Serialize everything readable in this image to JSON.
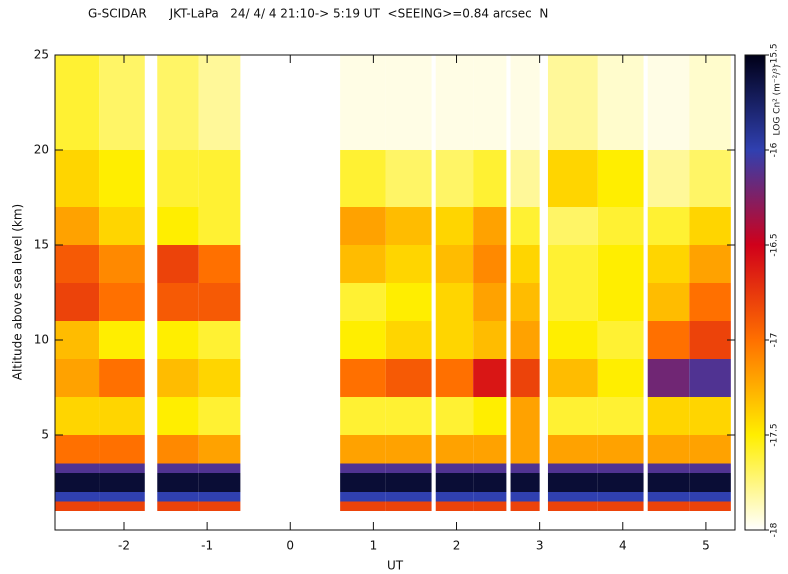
{
  "chart_data": {
    "type": "heatmap",
    "title": "G-SCIDAR      JKT-LaPa   24/ 4/ 4 21:10-> 5:19 UT  <SEEING>=0.84 arcsec  N",
    "x_label": "UT",
    "y_label": "Altitude above sea level (km)",
    "colorbar_label": "LOG Cn² (m⁻²/³)",
    "xlim": [
      -2.83,
      5.35
    ],
    "xticks": [
      -2,
      -1,
      0,
      1,
      2,
      3,
      4,
      5
    ],
    "ylim": [
      0,
      25
    ],
    "yticks": [
      5,
      10,
      15,
      20,
      25
    ],
    "zlim": [
      -18,
      -15.5
    ],
    "zticks": [
      -18,
      -17.5,
      -17,
      -16.5,
      -16,
      -15.5
    ],
    "colors": [
      "#ffffff",
      "#ffee00",
      "#ff7000",
      "#d0001a",
      "#3040b0",
      "#000018"
    ],
    "x_edges": [
      -2.83,
      -2.3,
      -1.75,
      -1.6,
      -1.1,
      -0.6,
      0.6,
      1.15,
      1.7,
      1.75,
      2.2,
      2.6,
      2.65,
      3.0,
      3.1,
      3.7,
      4.25,
      4.3,
      4.8,
      5.3
    ],
    "y_edges": [
      1,
      1.5,
      2,
      3,
      3.5,
      5,
      7,
      9,
      11,
      13,
      15,
      17,
      20,
      25
    ],
    "values": [
      [
        -16.8,
        -16.8,
        null,
        -16.8,
        -16.8,
        null,
        -16.8,
        -16.8,
        null,
        -16.8,
        -16.8,
        null,
        -16.8,
        null,
        -16.8,
        -16.8,
        null,
        -16.8,
        -16.8
      ],
      [
        -16.0,
        -16.0,
        null,
        -16.0,
        -16.0,
        null,
        -16.0,
        -16.0,
        null,
        -16.0,
        -16.0,
        null,
        -16.0,
        null,
        -16.0,
        -16.0,
        null,
        -16.0,
        -16.0
      ],
      [
        -15.6,
        -15.6,
        null,
        -15.6,
        -15.6,
        null,
        -15.6,
        -15.6,
        null,
        -15.6,
        -15.6,
        null,
        -15.6,
        null,
        -15.6,
        -15.6,
        null,
        -15.6,
        -15.6
      ],
      [
        -16.1,
        -16.1,
        null,
        -16.1,
        -16.1,
        null,
        -16.1,
        -16.1,
        null,
        -16.1,
        -16.1,
        null,
        -16.1,
        null,
        -16.1,
        -16.1,
        null,
        -16.1,
        -16.1
      ],
      [
        -17.0,
        -17.0,
        null,
        -17.1,
        -17.2,
        null,
        -17.2,
        -17.2,
        null,
        -17.2,
        -17.2,
        null,
        -17.2,
        null,
        -17.2,
        -17.2,
        null,
        -17.2,
        -17.2
      ],
      [
        -17.4,
        -17.4,
        null,
        -17.5,
        -17.6,
        null,
        -17.6,
        -17.6,
        null,
        -17.6,
        -17.5,
        null,
        -17.2,
        null,
        -17.6,
        -17.6,
        null,
        -17.4,
        -17.4
      ],
      [
        -17.2,
        -17.0,
        null,
        -17.3,
        -17.4,
        null,
        -17.0,
        -16.9,
        null,
        -17.0,
        -16.6,
        null,
        -16.8,
        null,
        -17.3,
        -17.5,
        null,
        -16.2,
        -16.1
      ],
      [
        -17.3,
        -17.5,
        null,
        -17.5,
        -17.6,
        null,
        -17.5,
        -17.4,
        null,
        -17.4,
        -17.3,
        null,
        -17.2,
        null,
        -17.5,
        -17.6,
        null,
        -17.0,
        -16.8
      ],
      [
        -16.8,
        -17.0,
        null,
        -16.9,
        -16.9,
        null,
        -17.6,
        -17.5,
        null,
        -17.4,
        -17.2,
        null,
        -17.3,
        null,
        -17.6,
        -17.5,
        null,
        -17.3,
        -17.0
      ],
      [
        -16.9,
        -17.1,
        null,
        -16.8,
        -17.0,
        null,
        -17.3,
        -17.4,
        null,
        -17.3,
        -17.1,
        null,
        -17.4,
        null,
        -17.6,
        -17.5,
        null,
        -17.4,
        -17.2
      ],
      [
        -17.2,
        -17.4,
        null,
        -17.5,
        -17.6,
        null,
        -17.2,
        -17.3,
        null,
        -17.4,
        -17.2,
        null,
        -17.6,
        null,
        -17.7,
        -17.6,
        null,
        -17.6,
        -17.4
      ],
      [
        -17.4,
        -17.5,
        null,
        -17.6,
        -17.6,
        null,
        -17.6,
        -17.7,
        null,
        -17.7,
        -17.6,
        null,
        -17.8,
        null,
        -17.4,
        -17.5,
        null,
        -17.8,
        -17.7
      ],
      [
        -17.6,
        -17.7,
        null,
        -17.7,
        -17.8,
        null,
        -17.95,
        -17.95,
        null,
        -17.95,
        -17.95,
        null,
        -17.95,
        null,
        -17.8,
        -17.9,
        null,
        -17.95,
        -17.9
      ]
    ]
  }
}
